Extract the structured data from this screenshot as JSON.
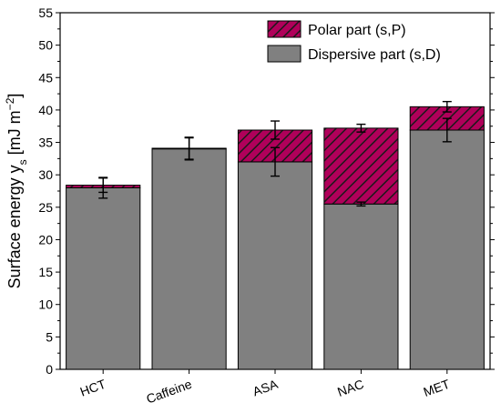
{
  "chart_data": {
    "type": "bar",
    "stacked": true,
    "categories": [
      "HCT",
      "Caffeine",
      "ASA",
      "NAC",
      "MET"
    ],
    "series": [
      {
        "name": "Dispersive part (s,D)",
        "values": [
          28.0,
          34.0,
          32.0,
          25.5,
          36.9
        ],
        "errors": [
          1.6,
          1.7,
          2.2,
          0.3,
          1.8
        ],
        "color": "#808080",
        "pattern": "solid"
      },
      {
        "name": "Polar part (s,P)",
        "values": [
          0.4,
          0.1,
          4.9,
          11.7,
          3.6
        ],
        "errors": [
          1.1,
          1.7,
          1.4,
          0.6,
          0.8
        ],
        "color": "#b0005a",
        "pattern": "hatched"
      }
    ],
    "xlabel": "",
    "ylabel_main": "Surface energy y",
    "ylabel_sub": "s",
    "ylabel_unit_open": " [mJ m",
    "ylabel_exp": "−2",
    "ylabel_unit_close": "]",
    "ylim": [
      0,
      55
    ],
    "yticks": [
      "0",
      "5",
      "10",
      "15",
      "20",
      "25",
      "30",
      "35",
      "40",
      "45",
      "50",
      "55"
    ],
    "grid": false,
    "legend_position": "top-right"
  }
}
